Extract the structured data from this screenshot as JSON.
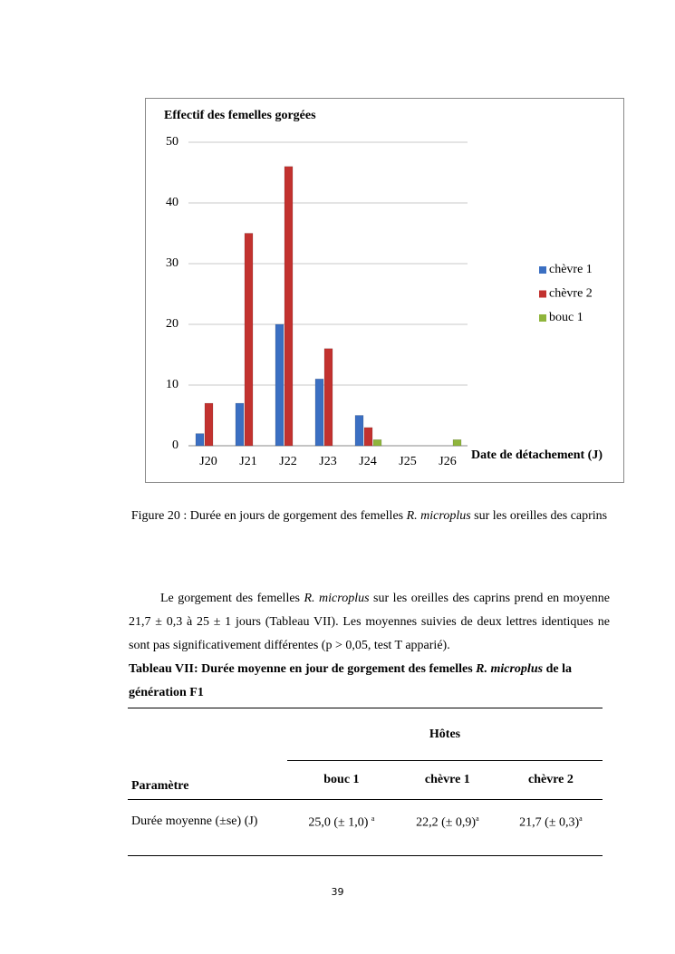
{
  "chart_data": {
    "type": "bar",
    "title": "Effectif des femelles gorgées",
    "x_label": "Date de détachement (J)",
    "categories": [
      "J20",
      "J21",
      "J22",
      "J23",
      "J24",
      "J25",
      "J26"
    ],
    "series": [
      {
        "name": "chèvre 1",
        "color": "#3b6fc2",
        "values": [
          2,
          7,
          20,
          11,
          5,
          0,
          0
        ]
      },
      {
        "name": "chèvre 2",
        "color": "#c2322f",
        "values": [
          7,
          35,
          46,
          16,
          3,
          0,
          0
        ]
      },
      {
        "name": "bouc 1",
        "color": "#8fb53c",
        "values": [
          0,
          0,
          0,
          0,
          1,
          0,
          1
        ]
      }
    ],
    "ylim": [
      0,
      50
    ],
    "yticks": [
      0,
      10,
      20,
      30,
      40,
      50
    ],
    "grid": true,
    "legend": "right"
  },
  "caption": {
    "before": "Figure 20 : Durée en jours de gorgement des femelles ",
    "italic": "R. microplus",
    "after": " sur les oreilles des caprins"
  },
  "paragraph": {
    "before": "Le gorgement des femelles ",
    "italic": "R. microplus",
    "after": " sur les oreilles des caprins prend en moyenne 21,7 ± 0,3 à 25 ± 1 jours (Tableau VII). Les moyennes suivies de deux lettres identiques ne sont pas significativement différentes (p > 0,05, test T apparié)."
  },
  "table_title": {
    "before": "Tableau VII: Durée moyenne en jour de gorgement des femelles ",
    "italic": "R. microplus",
    "after": " de la génération F1"
  },
  "table": {
    "param_header": "Paramètre",
    "group_header": "Hôtes",
    "columns": [
      "bouc 1",
      "chèvre 1",
      "chèvre 2"
    ],
    "row_label": "Durée moyenne (±se) (J)",
    "cells": [
      {
        "text": "25,0 (± 1,0) ",
        "sup": "a"
      },
      {
        "text": "22,2 (± 0,9)",
        "sup": "a"
      },
      {
        "text": "21,7 (± 0,3)",
        "sup": "a"
      }
    ]
  },
  "page_number": "39"
}
